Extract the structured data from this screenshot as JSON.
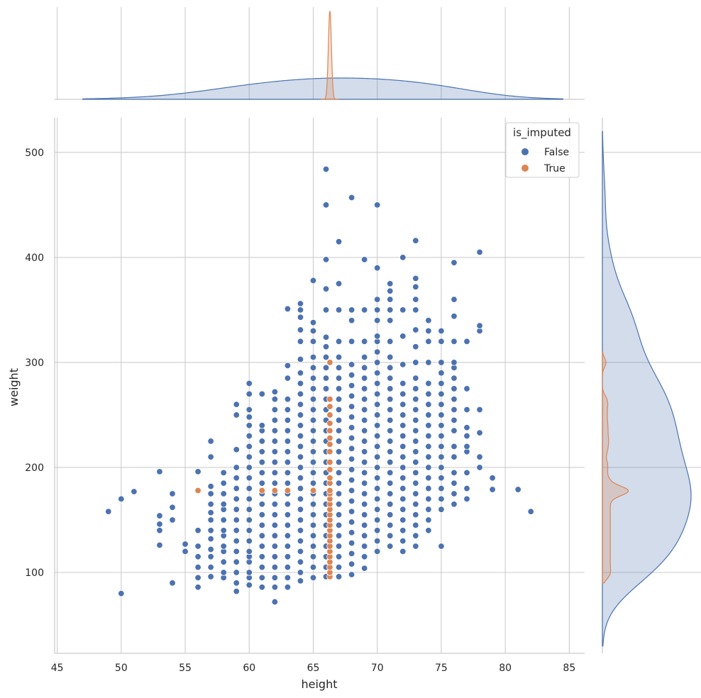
{
  "chart_data": {
    "type": "scatter",
    "variant": "jointplot",
    "title": "",
    "xlabel": "height",
    "ylabel": "weight",
    "xlim": [
      44.8,
      86.2
    ],
    "ylim": [
      23,
      533
    ],
    "xticks": [
      45,
      50,
      55,
      60,
      65,
      70,
      75,
      80,
      85
    ],
    "yticks": [
      100,
      200,
      300,
      400,
      500
    ],
    "grid": true,
    "legend": {
      "title": "is_imputed",
      "placement": "top-right",
      "entries": [
        {
          "label": "False",
          "color": "#4c72b0"
        },
        {
          "label": "True",
          "color": "#dd8452"
        }
      ]
    },
    "colors": {
      "false": "#4c72b0",
      "true": "#dd8452",
      "grid": "#cccccc",
      "spine": "#cccccc"
    },
    "series": [
      {
        "name": "False",
        "columns": [
          {
            "x": 49,
            "y": [
              158
            ]
          },
          {
            "x": 50,
            "y": [
              80,
              170
            ]
          },
          {
            "x": 51,
            "y": [
              177
            ]
          },
          {
            "x": 53,
            "y": [
              126,
              140,
              146,
              154,
              196
            ]
          },
          {
            "x": 54,
            "y": [
              90,
              150,
              162,
              175
            ]
          },
          {
            "x": 55,
            "y": [
              120,
              127
            ]
          },
          {
            "x": 56,
            "y": [
              86,
              95,
              105,
              115,
              125,
              140,
              178,
              196
            ]
          },
          {
            "x": 57,
            "y": [
              96,
              105,
              115,
              122,
              132,
              140,
              150,
              157,
              165,
              175,
              182,
              210,
              225
            ]
          },
          {
            "x": 58,
            "y": [
              95,
              100,
              110,
              120,
              125,
              135,
              140,
              150,
              160,
              165,
              175,
              185,
              195
            ]
          },
          {
            "x": 59,
            "y": [
              82,
              90,
              100,
              110,
              120,
              130,
              140,
              150,
              160,
              170,
              180,
              190,
              200,
              217,
              250,
              260
            ]
          },
          {
            "x": 60,
            "y": [
              88,
              95,
              100,
              110,
              115,
              120,
              130,
              140,
              150,
              160,
              170,
              180,
              190,
              200,
              210,
              220,
              230,
              240,
              248,
              255,
              270,
              280
            ]
          },
          {
            "x": 61,
            "y": [
              86,
              95,
              105,
              115,
              125,
              135,
              145,
              155,
              165,
              175,
              185,
              195,
              205,
              215,
              225,
              235,
              240,
              270
            ]
          },
          {
            "x": 62,
            "y": [
              72,
              86,
              95,
              105,
              115,
              125,
              135,
              145,
              155,
              165,
              175,
              185,
              195,
              205,
              215,
              225,
              235,
              245,
              255,
              265,
              272
            ]
          },
          {
            "x": 63,
            "y": [
              86,
              95,
              105,
              115,
              125,
              135,
              145,
              155,
              165,
              175,
              185,
              195,
              205,
              215,
              225,
              235,
              245,
              255,
              265,
              285,
              297,
              351
            ]
          },
          {
            "x": 64,
            "y": [
              92,
              100,
              110,
              120,
              130,
              140,
              150,
              160,
              170,
              180,
              190,
              200,
              210,
              220,
              230,
              240,
              250,
              260,
              270,
              280,
              290,
              303,
              320,
              331,
              343,
              350,
              356
            ]
          },
          {
            "x": 65,
            "y": [
              95,
              105,
              115,
              125,
              135,
              145,
              155,
              165,
              175,
              185,
              195,
              205,
              215,
              225,
              235,
              245,
              255,
              265,
              275,
              285,
              295,
              305,
              320,
              330,
              338,
              378
            ]
          },
          {
            "x": 66,
            "y": [
              96,
              105,
              115,
              125,
              135,
              145,
              155,
              165,
              175,
              185,
              195,
              205,
              215,
              225,
              235,
              245,
              255,
              265,
              275,
              285,
              295,
              305,
              315,
              324,
              350,
              370,
              398,
              450,
              484
            ]
          },
          {
            "x": 67,
            "y": [
              96,
              105,
              115,
              125,
              135,
              145,
              155,
              165,
              175,
              185,
              195,
              205,
              215,
              225,
              235,
              245,
              255,
              265,
              275,
              285,
              295,
              305,
              320,
              350,
              375,
              415
            ]
          },
          {
            "x": 68,
            "y": [
              98,
              108,
              118,
              128,
              138,
              148,
              158,
              168,
              178,
              188,
              198,
              208,
              218,
              228,
              238,
              248,
              258,
              268,
              278,
              288,
              298,
              320,
              340,
              350,
              457
            ]
          },
          {
            "x": 69,
            "y": [
              104,
              115,
              125,
              135,
              145,
              155,
              165,
              175,
              185,
              195,
              205,
              215,
              225,
              235,
              245,
              255,
              265,
              275,
              285,
              295,
              305,
              320,
              350,
              398
            ]
          },
          {
            "x": 70,
            "y": [
              120,
              130,
              140,
              150,
              160,
              170,
              180,
              190,
              200,
              210,
              220,
              230,
              240,
              250,
              260,
              270,
              280,
              290,
              300,
              310,
              320,
              325,
              340,
              350,
              360,
              390,
              450
            ]
          },
          {
            "x": 71,
            "y": [
              125,
              135,
              145,
              155,
              165,
              175,
              185,
              195,
              205,
              215,
              225,
              235,
              245,
              255,
              265,
              275,
              285,
              295,
              305,
              320,
              340,
              350,
              360,
              368,
              375
            ]
          },
          {
            "x": 72,
            "y": [
              120,
              130,
              140,
              150,
              160,
              170,
              180,
              190,
              200,
              210,
              220,
              230,
              240,
              250,
              260,
              270,
              280,
              298,
              325,
              350,
              400
            ]
          },
          {
            "x": 73,
            "y": [
              125,
              135,
              145,
              155,
              165,
              175,
              185,
              195,
              205,
              215,
              225,
              235,
              245,
              255,
              265,
              275,
              285,
              300,
              315,
              331,
              350,
              360,
              372,
              380,
              416
            ]
          },
          {
            "x": 74,
            "y": [
              140,
              150,
              160,
              170,
              180,
              190,
              200,
              210,
              220,
              230,
              240,
              250,
              260,
              270,
              280,
              300,
              320,
              330,
              340
            ]
          },
          {
            "x": 75,
            "y": [
              125,
              160,
              170,
              180,
              190,
              200,
              210,
              220,
              230,
              240,
              250,
              260,
              270,
              280,
              290,
              300,
              320,
              330
            ]
          },
          {
            "x": 76,
            "y": [
              165,
              175,
              185,
              195,
              210,
              220,
              235,
              245,
              255,
              265,
              275,
              285,
              295,
              300,
              320,
              344,
              360,
              395
            ]
          },
          {
            "x": 77,
            "y": [
              170,
              180,
              195,
              215,
              220,
              230,
              238,
              255,
              275,
              320
            ]
          },
          {
            "x": 78,
            "y": [
              200,
              210,
              233,
              255,
              330,
              335,
              405
            ]
          },
          {
            "x": 79,
            "y": [
              179,
              190
            ]
          },
          {
            "x": 81,
            "y": [
              179
            ]
          },
          {
            "x": 82,
            "y": [
              158
            ]
          }
        ]
      },
      {
        "name": "True",
        "points": [
          [
            56,
            178
          ],
          [
            61,
            178
          ],
          [
            62,
            178
          ],
          [
            63,
            178
          ],
          [
            65,
            178
          ],
          [
            66.3,
            96
          ],
          [
            66.3,
            100
          ],
          [
            66.3,
            105
          ],
          [
            66.3,
            110
          ],
          [
            66.3,
            115
          ],
          [
            66.3,
            120
          ],
          [
            66.3,
            125
          ],
          [
            66.3,
            130
          ],
          [
            66.3,
            135
          ],
          [
            66.3,
            140
          ],
          [
            66.3,
            145
          ],
          [
            66.3,
            150
          ],
          [
            66.3,
            155
          ],
          [
            66.3,
            160
          ],
          [
            66.3,
            165
          ],
          [
            66.3,
            170
          ],
          [
            66.3,
            175
          ],
          [
            66.3,
            178
          ],
          [
            66.3,
            185
          ],
          [
            66.3,
            190
          ],
          [
            66.3,
            198
          ],
          [
            66.3,
            205
          ],
          [
            66.3,
            215
          ],
          [
            66.3,
            222
          ],
          [
            66.3,
            228
          ],
          [
            66.3,
            235
          ],
          [
            66.3,
            242
          ],
          [
            66.3,
            250
          ],
          [
            66.3,
            258
          ],
          [
            66.3,
            265
          ],
          [
            66.3,
            300
          ]
        ]
      }
    ]
  }
}
